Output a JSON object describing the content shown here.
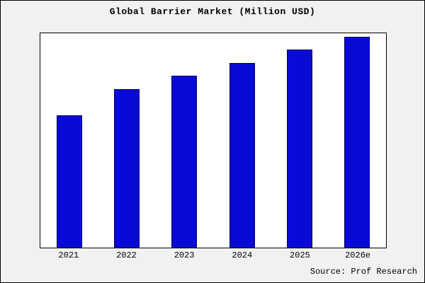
{
  "title": "Global Barrier Market (Million USD)",
  "source": "Source: Prof Research",
  "colors": {
    "bar": "#0a0ad8",
    "bar_border": "#000060",
    "plot_bg": "#ffffff",
    "page_bg": "#f1f1f1",
    "frame_border": "#000000"
  },
  "chart_data": {
    "type": "bar",
    "title": "Global Barrier Market (Million USD)",
    "categories": [
      "2021",
      "2022",
      "2023",
      "2024",
      "2025",
      "2026e"
    ],
    "values": [
      188,
      225,
      245,
      263,
      282,
      300
    ],
    "xlabel": "",
    "ylabel": "",
    "ylim": [
      0,
      305
    ],
    "grid": false,
    "legend": false,
    "y_axis_ticks_visible": false,
    "annotation": "Source: Prof Research"
  }
}
